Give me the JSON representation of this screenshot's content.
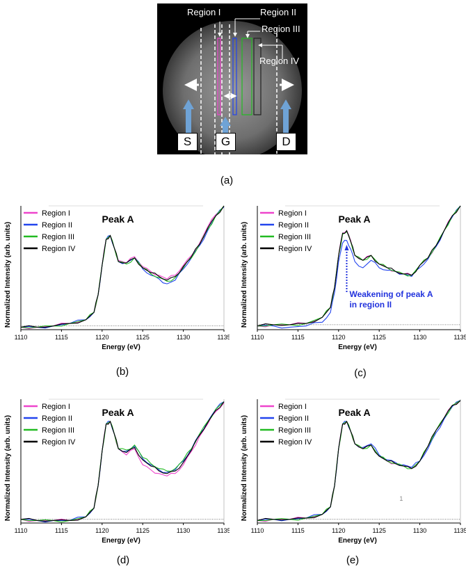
{
  "image": {
    "region_labels": [
      "Region I",
      "Region II",
      "Region III",
      "Region IV"
    ],
    "terminals": [
      "S",
      "G",
      "D"
    ],
    "caption": "(a)"
  },
  "colors": {
    "region1": "#ee44cc",
    "region2": "#2244ee",
    "region3": "#22bb22",
    "region4": "#000000",
    "annotation": "#2233dd"
  },
  "chart_data": [
    {
      "type": "line",
      "caption": "(b)",
      "xlabel": "Energy (eV)",
      "ylabel": "Normalized Intensity (arb. units)",
      "xlim": [
        1110,
        1135
      ],
      "xticks": [
        1110,
        1115,
        1120,
        1125,
        1130,
        1135
      ],
      "ylim": [
        0,
        1
      ],
      "annotation": "Peak A",
      "legend": [
        "Region I",
        "Region II",
        "Region III",
        "Region IV"
      ],
      "legend_position": "top-left",
      "baseline": 0.03,
      "x": [
        1110,
        1112,
        1114,
        1116,
        1118,
        1119,
        1119.5,
        1120,
        1120.5,
        1121,
        1121.5,
        1122,
        1123,
        1124,
        1125,
        1126,
        1127,
        1128,
        1129,
        1130,
        1131,
        1132,
        1133,
        1134,
        1135
      ],
      "series": [
        {
          "name": "Region I",
          "values": [
            0.02,
            0.02,
            0.03,
            0.05,
            0.08,
            0.14,
            0.28,
            0.52,
            0.73,
            0.76,
            0.66,
            0.56,
            0.54,
            0.59,
            0.51,
            0.47,
            0.44,
            0.41,
            0.44,
            0.52,
            0.6,
            0.7,
            0.83,
            0.93,
            1.0
          ]
        },
        {
          "name": "Region II",
          "values": [
            0.02,
            0.02,
            0.03,
            0.05,
            0.08,
            0.14,
            0.28,
            0.52,
            0.73,
            0.76,
            0.66,
            0.55,
            0.54,
            0.58,
            0.49,
            0.44,
            0.41,
            0.37,
            0.4,
            0.49,
            0.58,
            0.68,
            0.8,
            0.92,
            0.99
          ]
        },
        {
          "name": "Region III",
          "values": [
            0.02,
            0.02,
            0.03,
            0.05,
            0.08,
            0.14,
            0.28,
            0.52,
            0.73,
            0.76,
            0.66,
            0.55,
            0.53,
            0.58,
            0.5,
            0.45,
            0.42,
            0.39,
            0.42,
            0.5,
            0.58,
            0.69,
            0.81,
            0.92,
            1.0
          ]
        },
        {
          "name": "Region IV",
          "values": [
            0.02,
            0.02,
            0.03,
            0.05,
            0.08,
            0.14,
            0.28,
            0.52,
            0.73,
            0.76,
            0.66,
            0.55,
            0.54,
            0.58,
            0.5,
            0.46,
            0.43,
            0.4,
            0.43,
            0.51,
            0.59,
            0.69,
            0.82,
            0.92,
            1.0
          ]
        }
      ]
    },
    {
      "type": "line",
      "caption": "(c)",
      "xlabel": "Energy (eV)",
      "ylabel": "Normalized Intensity (arb. units)",
      "xlim": [
        1110,
        1135
      ],
      "xticks": [
        1110,
        1115,
        1120,
        1125,
        1130,
        1135
      ],
      "ylim": [
        0,
        1
      ],
      "annotation": "Peak A",
      "annotation_2": [
        "Weakening of peak A",
        "in region II"
      ],
      "legend": [
        "Region I",
        "Region II",
        "Region III",
        "Region IV"
      ],
      "legend_position": "top-left",
      "baseline": 0.04,
      "x": [
        1110,
        1112,
        1114,
        1116,
        1118,
        1119,
        1119.5,
        1120,
        1120.5,
        1121,
        1121.5,
        1122,
        1123,
        1124,
        1125,
        1126,
        1127,
        1128,
        1129,
        1130,
        1131,
        1132,
        1133,
        1134,
        1135
      ],
      "series": [
        {
          "name": "Region I",
          "values": [
            0.03,
            0.04,
            0.04,
            0.05,
            0.1,
            0.18,
            0.34,
            0.6,
            0.78,
            0.8,
            0.72,
            0.6,
            0.56,
            0.6,
            0.53,
            0.5,
            0.47,
            0.45,
            0.44,
            0.52,
            0.58,
            0.68,
            0.8,
            0.92,
            1.0
          ]
        },
        {
          "name": "Region II",
          "values": [
            0.03,
            0.03,
            0.02,
            0.03,
            0.06,
            0.14,
            0.3,
            0.55,
            0.7,
            0.72,
            0.65,
            0.55,
            0.5,
            0.56,
            0.5,
            0.48,
            0.47,
            0.45,
            0.43,
            0.5,
            0.57,
            0.67,
            0.8,
            0.91,
            1.0
          ]
        },
        {
          "name": "Region III",
          "values": [
            0.03,
            0.04,
            0.04,
            0.05,
            0.1,
            0.18,
            0.34,
            0.6,
            0.77,
            0.79,
            0.71,
            0.6,
            0.56,
            0.6,
            0.53,
            0.5,
            0.47,
            0.45,
            0.44,
            0.52,
            0.58,
            0.68,
            0.8,
            0.92,
            1.0
          ]
        },
        {
          "name": "Region IV",
          "values": [
            0.03,
            0.04,
            0.04,
            0.05,
            0.1,
            0.18,
            0.34,
            0.6,
            0.78,
            0.8,
            0.71,
            0.6,
            0.56,
            0.6,
            0.53,
            0.5,
            0.47,
            0.45,
            0.44,
            0.52,
            0.58,
            0.68,
            0.8,
            0.92,
            1.0
          ]
        }
      ]
    },
    {
      "type": "line",
      "caption": "(d)",
      "xlabel": "Energy (eV)",
      "ylabel": "Normalized Intensity (arb. units)",
      "xlim": [
        1110,
        1135
      ],
      "xticks": [
        1110,
        1115,
        1120,
        1125,
        1130,
        1135
      ],
      "ylim": [
        0,
        1
      ],
      "annotation": "Peak A",
      "legend": [
        "Region I",
        "Region II",
        "Region III",
        "Region IV"
      ],
      "legend_position": "top-left",
      "baseline": 0.03,
      "x": [
        1110,
        1112,
        1114,
        1116,
        1118,
        1119,
        1119.5,
        1120,
        1120.5,
        1121,
        1121.5,
        1122,
        1123,
        1124,
        1125,
        1126,
        1127,
        1128,
        1129,
        1130,
        1131,
        1132,
        1133,
        1134,
        1135
      ],
      "series": [
        {
          "name": "Region I",
          "values": [
            0.03,
            0.02,
            0.02,
            0.02,
            0.05,
            0.12,
            0.3,
            0.58,
            0.8,
            0.82,
            0.72,
            0.6,
            0.55,
            0.6,
            0.47,
            0.43,
            0.4,
            0.38,
            0.4,
            0.47,
            0.58,
            0.7,
            0.8,
            0.9,
            0.97
          ]
        },
        {
          "name": "Region II",
          "values": [
            0.03,
            0.02,
            0.02,
            0.02,
            0.05,
            0.12,
            0.3,
            0.58,
            0.8,
            0.82,
            0.72,
            0.6,
            0.58,
            0.62,
            0.52,
            0.47,
            0.43,
            0.41,
            0.43,
            0.5,
            0.6,
            0.72,
            0.82,
            0.92,
            0.98
          ]
        },
        {
          "name": "Region III",
          "values": [
            0.03,
            0.02,
            0.02,
            0.02,
            0.05,
            0.12,
            0.3,
            0.58,
            0.8,
            0.82,
            0.72,
            0.6,
            0.59,
            0.63,
            0.53,
            0.48,
            0.44,
            0.42,
            0.44,
            0.51,
            0.6,
            0.72,
            0.82,
            0.92,
            0.98
          ]
        },
        {
          "name": "Region IV",
          "values": [
            0.03,
            0.02,
            0.02,
            0.02,
            0.05,
            0.12,
            0.3,
            0.58,
            0.8,
            0.82,
            0.72,
            0.6,
            0.57,
            0.61,
            0.51,
            0.46,
            0.42,
            0.4,
            0.42,
            0.49,
            0.59,
            0.71,
            0.81,
            0.91,
            0.98
          ]
        }
      ]
    },
    {
      "type": "line",
      "caption": "(e)",
      "xlabel": "Energy (eV)",
      "ylabel": "Normalized Intensity (arb. units)",
      "xlim": [
        1110,
        1135
      ],
      "xticks": [
        1110,
        1115,
        1120,
        1125,
        1130,
        1135
      ],
      "ylim": [
        0,
        1
      ],
      "annotation": "Peak A",
      "stray_text": "1",
      "legend": [
        "Region I",
        "Region II",
        "Region III",
        "Region IV"
      ],
      "legend_position": "top-left",
      "baseline": 0.03,
      "x": [
        1110,
        1112,
        1114,
        1116,
        1118,
        1119,
        1119.5,
        1120,
        1120.5,
        1121,
        1121.5,
        1122,
        1123,
        1124,
        1125,
        1126,
        1127,
        1128,
        1129,
        1130,
        1131,
        1132,
        1133,
        1134,
        1135
      ],
      "series": [
        {
          "name": "Region I",
          "values": [
            0.02,
            0.03,
            0.03,
            0.04,
            0.07,
            0.13,
            0.3,
            0.6,
            0.8,
            0.82,
            0.74,
            0.64,
            0.6,
            0.63,
            0.54,
            0.5,
            0.48,
            0.46,
            0.44,
            0.5,
            0.62,
            0.75,
            0.85,
            0.95,
            0.99
          ]
        },
        {
          "name": "Region II",
          "values": [
            0.02,
            0.03,
            0.03,
            0.04,
            0.07,
            0.13,
            0.3,
            0.6,
            0.8,
            0.82,
            0.74,
            0.64,
            0.61,
            0.64,
            0.55,
            0.51,
            0.49,
            0.47,
            0.45,
            0.5,
            0.6,
            0.73,
            0.84,
            0.94,
            0.99
          ]
        },
        {
          "name": "Region III",
          "values": [
            0.02,
            0.03,
            0.03,
            0.04,
            0.07,
            0.13,
            0.3,
            0.6,
            0.8,
            0.82,
            0.74,
            0.64,
            0.6,
            0.63,
            0.54,
            0.5,
            0.48,
            0.46,
            0.44,
            0.5,
            0.62,
            0.75,
            0.85,
            0.95,
            0.99
          ]
        },
        {
          "name": "Region IV",
          "values": [
            0.02,
            0.03,
            0.03,
            0.04,
            0.07,
            0.13,
            0.3,
            0.6,
            0.8,
            0.82,
            0.74,
            0.64,
            0.6,
            0.63,
            0.54,
            0.5,
            0.48,
            0.46,
            0.44,
            0.5,
            0.62,
            0.75,
            0.85,
            0.95,
            0.99
          ]
        }
      ]
    }
  ]
}
